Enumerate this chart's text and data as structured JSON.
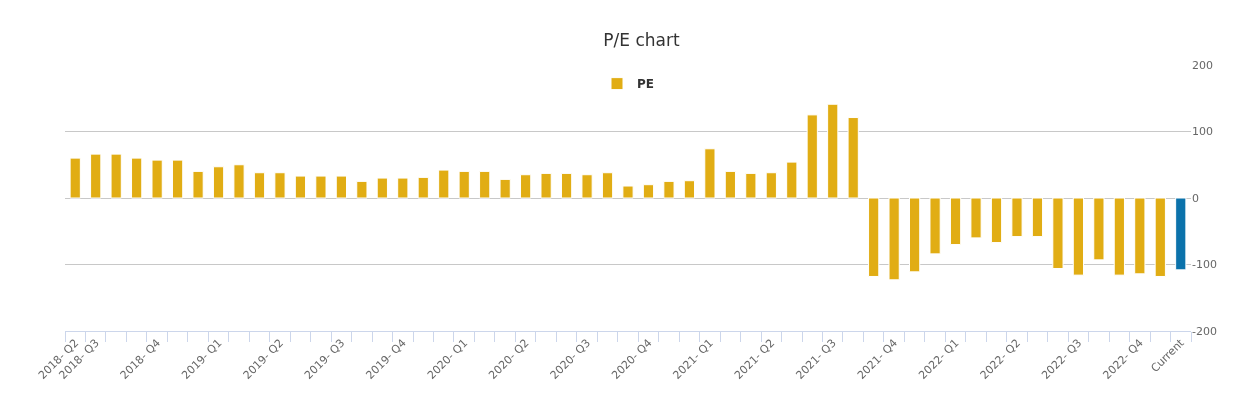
{
  "chart_data": {
    "type": "bar",
    "title": "P/E chart",
    "categories": [
      "2018- Q2",
      "2018- Q3",
      null,
      null,
      "2018- Q4",
      null,
      null,
      "2019- Q1",
      null,
      null,
      "2019- Q2",
      null,
      null,
      "2019- Q3",
      null,
      null,
      "2019- Q4",
      null,
      null,
      "2020- Q1",
      null,
      null,
      "2020- Q2",
      null,
      null,
      "2020- Q3",
      null,
      null,
      "2020- Q4",
      null,
      null,
      "2021- Q1",
      null,
      null,
      "2021- Q2",
      null,
      null,
      "2021- Q3",
      null,
      null,
      "2021- Q4",
      null,
      null,
      "2022- Q1",
      null,
      null,
      "2022- Q2",
      null,
      null,
      "2022- Q3",
      null,
      null,
      "2022- Q4",
      null,
      "Current"
    ],
    "series": [
      {
        "name": "PE",
        "colors": [
          "#e1ad14",
          "#e1ad14",
          "#e1ad14",
          "#e1ad14",
          "#e1ad14",
          "#e1ad14",
          "#e1ad14",
          "#e1ad14",
          "#e1ad14",
          "#e1ad14",
          "#e1ad14",
          "#e1ad14",
          "#e1ad14",
          "#e1ad14",
          "#e1ad14",
          "#e1ad14",
          "#e1ad14",
          "#e1ad14",
          "#e1ad14",
          "#e1ad14",
          "#e1ad14",
          "#e1ad14",
          "#e1ad14",
          "#e1ad14",
          "#e1ad14",
          "#e1ad14",
          "#e1ad14",
          "#e1ad14",
          "#e1ad14",
          "#e1ad14",
          "#e1ad14",
          "#e1ad14",
          "#e1ad14",
          "#e1ad14",
          "#e1ad14",
          "#e1ad14",
          "#e1ad14",
          "#e1ad14",
          "#e1ad14",
          "#e1ad14",
          "#e1ad14",
          "#e1ad14",
          "#e1ad14",
          "#e1ad14",
          "#e1ad14",
          "#e1ad14",
          "#e1ad14",
          "#e1ad14",
          "#e1ad14",
          "#e1ad14",
          "#e1ad14",
          "#e1ad14",
          "#e1ad14",
          "#e1ad14",
          "#0b72ab"
        ],
        "values": [
          60,
          66,
          66,
          60,
          57,
          57,
          40,
          47,
          50,
          38,
          38,
          33,
          33,
          33,
          25,
          30,
          30,
          31,
          42,
          40,
          40,
          28,
          35,
          37,
          37,
          35,
          38,
          18,
          20,
          25,
          26,
          74,
          40,
          37,
          38,
          54,
          125,
          141,
          121,
          -118,
          -123,
          -111,
          -84,
          -70,
          -60,
          -67,
          -58,
          -58,
          -106,
          -116,
          -93,
          -116,
          -114,
          -118,
          -108
        ]
      }
    ],
    "ylim": [
      -200,
      200
    ],
    "yticks": [
      -200,
      -100,
      0,
      100,
      200
    ],
    "grid": "y",
    "legend": "top"
  }
}
